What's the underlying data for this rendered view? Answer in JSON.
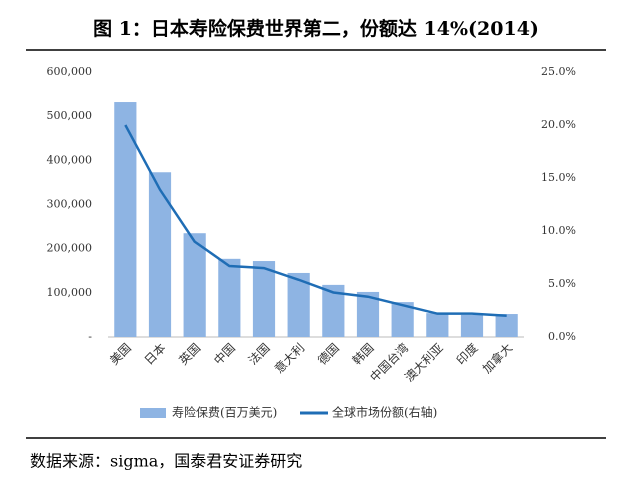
{
  "chart_data": {
    "type": "bar_line",
    "title": "图 1：日本寿险保费世界第二，份额达 14%(2014)",
    "source": "数据来源：sigma，国泰君安证券研究",
    "categories": [
      "美国",
      "日本",
      "英国",
      "中国",
      "法国",
      "意大利",
      "德国",
      "韩国",
      "中国台湾",
      "澳大利亚",
      "印度",
      "加拿大"
    ],
    "series": [
      {
        "name": "寿险保费(百万美元)",
        "color": "#8eb4e3",
        "type": "bar",
        "values": [
          532000,
          373000,
          235000,
          177000,
          172000,
          145000,
          118000,
          102000,
          79000,
          54000,
          50000,
          52000
        ]
      },
      {
        "name": "全球市场份额(右轴)",
        "color": "#1f6db5",
        "type": "line",
        "axis": "y2",
        "values": [
          20.0,
          13.9,
          9.0,
          6.7,
          6.5,
          5.4,
          4.2,
          3.8,
          3.0,
          2.2,
          2.2,
          2.0
        ]
      }
    ],
    "ylim": [
      0,
      600000
    ],
    "yticks": [
      {
        "value": 0,
        "label": "-"
      },
      {
        "value": 100000,
        "label": "100,000"
      },
      {
        "value": 200000,
        "label": "200,000"
      },
      {
        "value": 300000,
        "label": "300,000"
      },
      {
        "value": 400000,
        "label": "400,000"
      },
      {
        "value": 500000,
        "label": "500,000"
      },
      {
        "value": 600000,
        "label": "600,000"
      }
    ],
    "y2lim": [
      0,
      25
    ],
    "y2ticks": [
      {
        "value": 0,
        "label": "0.0%"
      },
      {
        "value": 5,
        "label": "5.0%"
      },
      {
        "value": 10,
        "label": "10.0%"
      },
      {
        "value": 15,
        "label": "15.0%"
      },
      {
        "value": 20,
        "label": "20.0%"
      },
      {
        "value": 25,
        "label": "25.0%"
      }
    ],
    "grid": false
  }
}
